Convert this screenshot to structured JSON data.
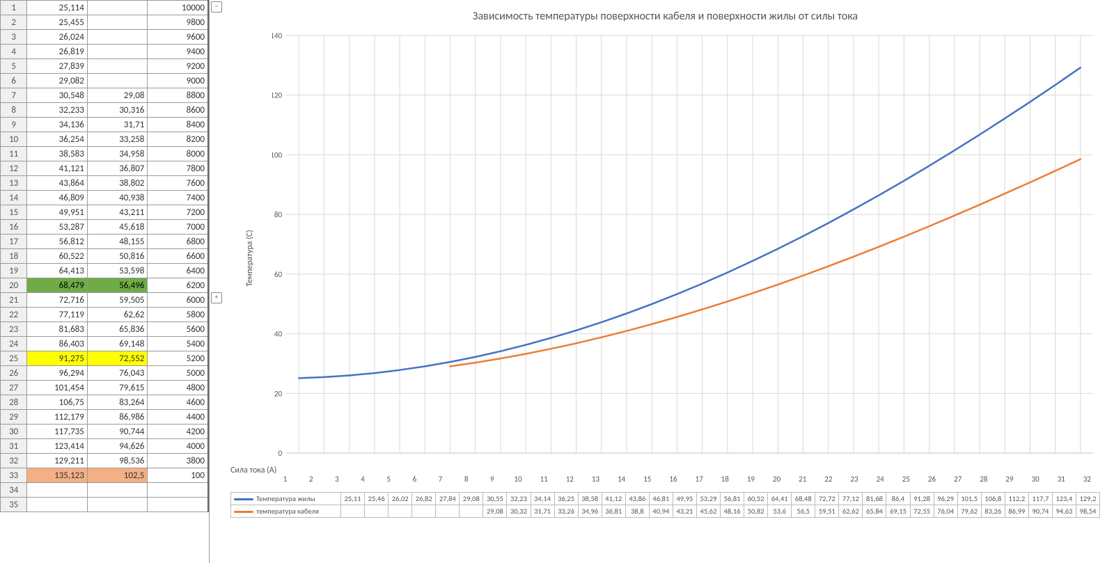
{
  "sheet": {
    "rows": [
      {
        "n": 1,
        "a": "25,114",
        "b": "",
        "c": "10000"
      },
      {
        "n": 2,
        "a": "25,455",
        "b": "",
        "c": "9800"
      },
      {
        "n": 3,
        "a": "26,024",
        "b": "",
        "c": "9600"
      },
      {
        "n": 4,
        "a": "26,819",
        "b": "",
        "c": "9400"
      },
      {
        "n": 5,
        "a": "27,839",
        "b": "",
        "c": "9200"
      },
      {
        "n": 6,
        "a": "29,082",
        "b": "",
        "c": "9000"
      },
      {
        "n": 7,
        "a": "30,548",
        "b": "29,08",
        "c": "8800"
      },
      {
        "n": 8,
        "a": "32,233",
        "b": "30,316",
        "c": "8600"
      },
      {
        "n": 9,
        "a": "34,136",
        "b": "31,71",
        "c": "8400"
      },
      {
        "n": 10,
        "a": "36,254",
        "b": "33,258",
        "c": "8200"
      },
      {
        "n": 11,
        "a": "38,583",
        "b": "34,958",
        "c": "8000"
      },
      {
        "n": 12,
        "a": "41,121",
        "b": "36,807",
        "c": "7800"
      },
      {
        "n": 13,
        "a": "43,864",
        "b": "38,802",
        "c": "7600"
      },
      {
        "n": 14,
        "a": "46,809",
        "b": "40,938",
        "c": "7400"
      },
      {
        "n": 15,
        "a": "49,951",
        "b": "43,211",
        "c": "7200"
      },
      {
        "n": 16,
        "a": "53,287",
        "b": "45,618",
        "c": "7000"
      },
      {
        "n": 17,
        "a": "56,812",
        "b": "48,155",
        "c": "6800"
      },
      {
        "n": 18,
        "a": "60,522",
        "b": "50,816",
        "c": "6600"
      },
      {
        "n": 19,
        "a": "64,413",
        "b": "53,598",
        "c": "6400"
      },
      {
        "n": 20,
        "a": "68,479",
        "b": "56,496",
        "c": "6200",
        "hl": "green"
      },
      {
        "n": 21,
        "a": "72,716",
        "b": "59,505",
        "c": "6000"
      },
      {
        "n": 22,
        "a": "77,119",
        "b": "62,62",
        "c": "5800"
      },
      {
        "n": 23,
        "a": "81,683",
        "b": "65,836",
        "c": "5600"
      },
      {
        "n": 24,
        "a": "86,403",
        "b": "69,148",
        "c": "5400"
      },
      {
        "n": 25,
        "a": "91,275",
        "b": "72,552",
        "c": "5200",
        "hl": "yellow"
      },
      {
        "n": 26,
        "a": "96,294",
        "b": "76,043",
        "c": "5000"
      },
      {
        "n": 27,
        "a": "101,454",
        "b": "79,615",
        "c": "4800"
      },
      {
        "n": 28,
        "a": "106,75",
        "b": "83,264",
        "c": "4600"
      },
      {
        "n": 29,
        "a": "112,179",
        "b": "86,986",
        "c": "4400"
      },
      {
        "n": 30,
        "a": "117,735",
        "b": "90,744",
        "c": "4200"
      },
      {
        "n": 31,
        "a": "123,414",
        "b": "94,626",
        "c": "4000"
      },
      {
        "n": 32,
        "a": "129,211",
        "b": "98,536",
        "c": "3800"
      },
      {
        "n": 33,
        "a": "135,123",
        "b": "102,5",
        "c": "100",
        "hl": "orange"
      },
      {
        "n": 34,
        "a": "",
        "b": "",
        "c": ""
      },
      {
        "n": 35,
        "a": "",
        "b": "",
        "c": ""
      }
    ]
  },
  "chart": {
    "title": "Зависимость температуры поверхности кабеля и поверхности жилы от силы тока",
    "ylabel": "Температура (C)",
    "xlabel": "Сила тока (A)",
    "type": "line",
    "ylim": [
      0,
      140
    ],
    "ytick_step": 20,
    "xcount": 32,
    "grid_color": "#d9d9d9",
    "background": "#ffffff",
    "axis_color": "#bfbfbf",
    "tick_fontsize": 11,
    "series": [
      {
        "name": "Температура жилы",
        "color": "#4472c4",
        "width": 2.5,
        "y": [
          25.114,
          25.455,
          26.024,
          26.819,
          27.839,
          29.082,
          30.548,
          32.233,
          34.136,
          36.254,
          38.583,
          41.121,
          43.864,
          46.809,
          49.951,
          53.287,
          56.812,
          60.522,
          64.413,
          68.479,
          72.716,
          77.119,
          81.683,
          86.403,
          91.275,
          96.294,
          101.454,
          106.75,
          112.179,
          117.735,
          123.414,
          129.211
        ],
        "labels": [
          "25,11",
          "25,46",
          "26,02",
          "26,82",
          "27,84",
          "29,08",
          "30,55",
          "32,23",
          "34,14",
          "36,25",
          "38,58",
          "41,12",
          "43,86",
          "46,81",
          "49,95",
          "53,29",
          "56,81",
          "60,52",
          "64,41",
          "68,48",
          "72,72",
          "77,12",
          "81,68",
          "86,4",
          "91,28",
          "96,29",
          "101,5",
          "106,8",
          "112,2",
          "117,7",
          "123,4",
          "129,2"
        ]
      },
      {
        "name": "температура кабеля",
        "color": "#ed7d31",
        "width": 2.5,
        "y": [
          null,
          null,
          null,
          null,
          null,
          null,
          29.08,
          30.316,
          31.71,
          33.258,
          34.958,
          36.807,
          38.802,
          40.938,
          43.211,
          45.618,
          48.155,
          50.816,
          53.598,
          56.496,
          59.505,
          62.62,
          65.836,
          69.148,
          72.552,
          76.043,
          79.615,
          83.264,
          86.986,
          90.744,
          94.626,
          98.536
        ],
        "labels": [
          "",
          "",
          "",
          "",
          "",
          "",
          "29,08",
          "30,32",
          "31,71",
          "33,26",
          "34,96",
          "36,81",
          "38,8",
          "40,94",
          "43,21",
          "45,62",
          "48,16",
          "50,82",
          "53,6",
          "56,5",
          "59,51",
          "62,62",
          "65,84",
          "69,15",
          "72,55",
          "76,04",
          "79,62",
          "83,26",
          "86,99",
          "90,74",
          "94,63",
          "98,54"
        ]
      }
    ]
  }
}
